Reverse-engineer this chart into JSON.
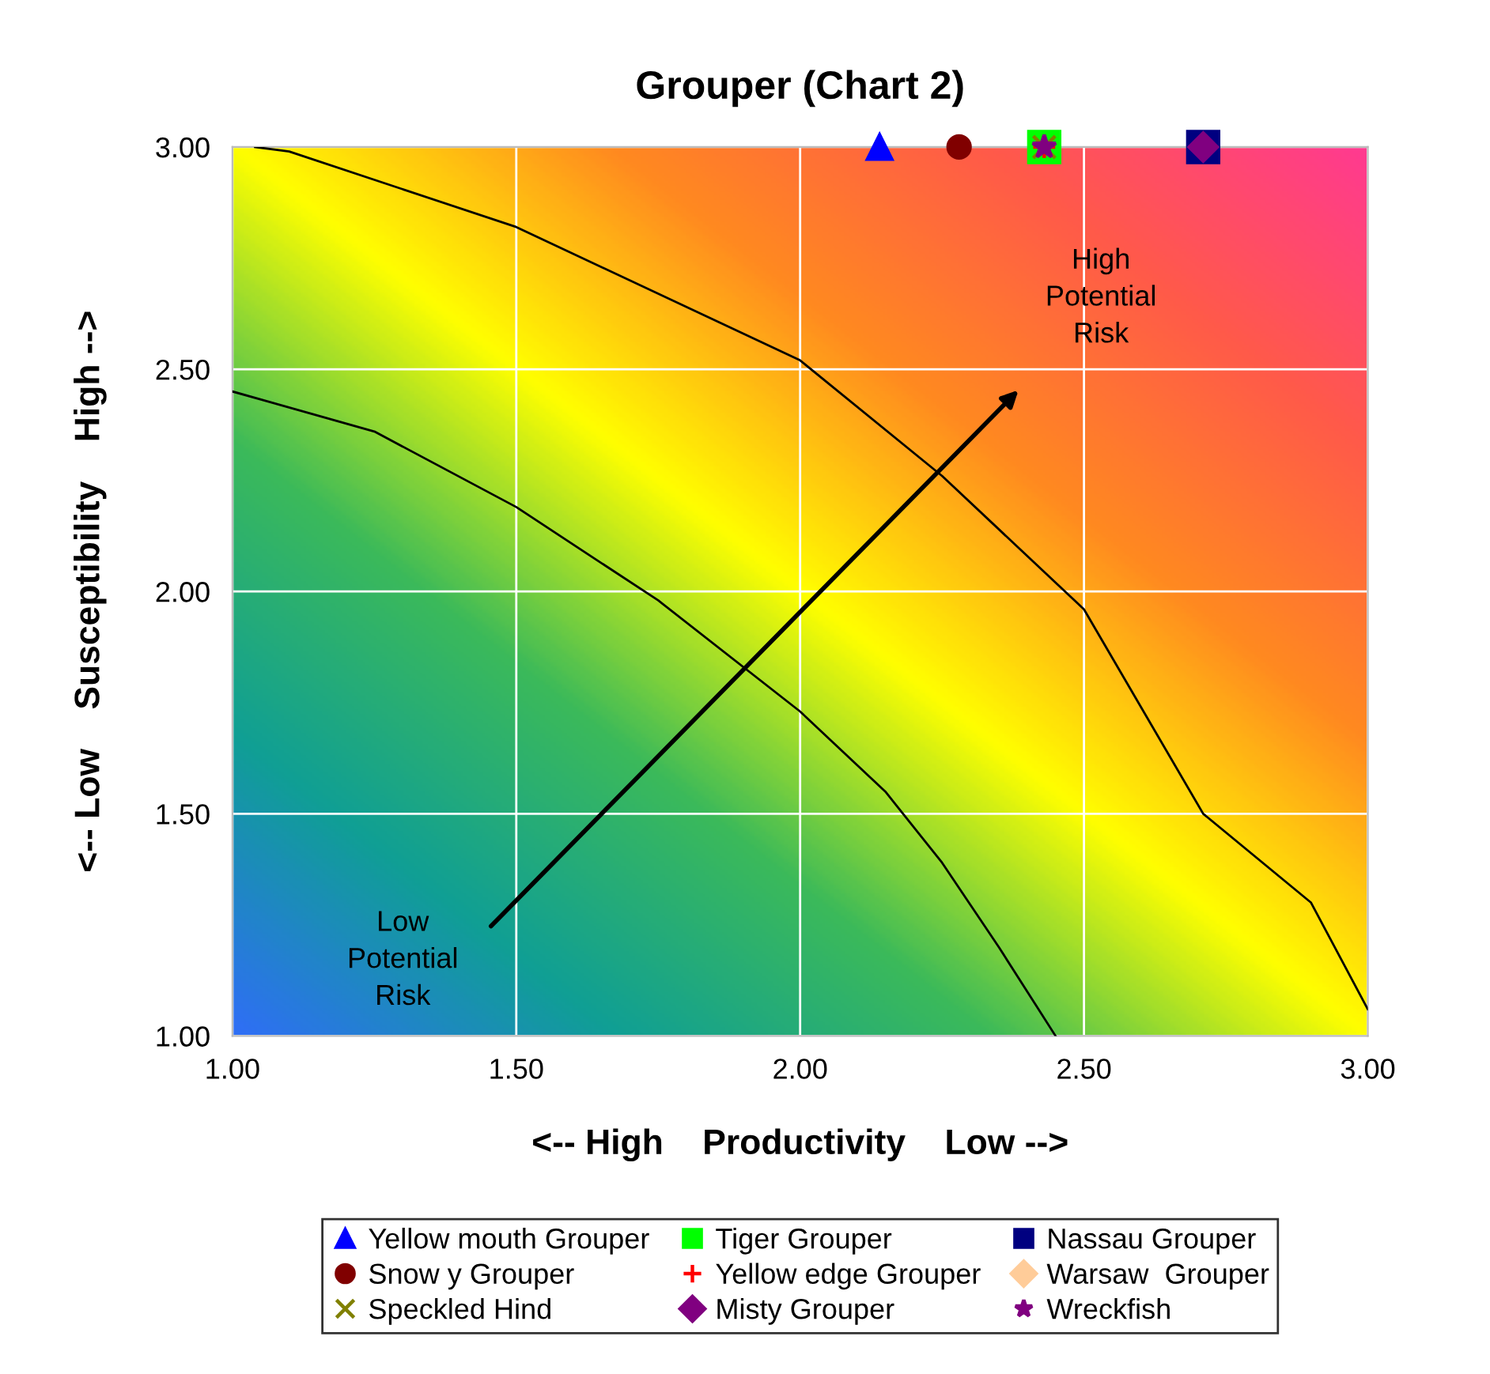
{
  "chart_data": {
    "type": "scatter",
    "title": "Grouper (Chart 2)",
    "xlabel": "<-- High    Productivity    Low -->",
    "ylabel": "<-- Low    Susceptibility    High -->",
    "xlim": [
      1,
      3
    ],
    "ylim": [
      1,
      3
    ],
    "xticks": [
      {
        "value": 1,
        "label": "1.00"
      },
      {
        "value": 1.5,
        "label": "1.50"
      },
      {
        "value": 2,
        "label": "2.00"
      },
      {
        "value": 2.5,
        "label": "2.50"
      },
      {
        "value": 3,
        "label": "3.00"
      }
    ],
    "yticks": [
      {
        "value": 1,
        "label": "1.00"
      },
      {
        "value": 1.5,
        "label": "1.50"
      },
      {
        "value": 2,
        "label": "2.00"
      },
      {
        "value": 2.5,
        "label": "2.50"
      },
      {
        "value": 3,
        "label": "3.00"
      }
    ],
    "grid": true,
    "legend": "bottom",
    "series": [
      {
        "name": "Yellow mouth Grouper",
        "color": "#0000ff",
        "marker": "triangle",
        "x": [
          2.14
        ],
        "values": [
          3.0
        ]
      },
      {
        "name": "Tiger Grouper",
        "color": "#00ff00",
        "marker": "square",
        "x": [
          2.43
        ],
        "values": [
          3.0
        ]
      },
      {
        "name": "Nassau Grouper",
        "color": "#000080",
        "marker": "square",
        "x": [
          2.71
        ],
        "values": [
          3.0
        ]
      },
      {
        "name": "Snow y Grouper",
        "color": "#800000",
        "marker": "circle",
        "x": [
          2.28
        ],
        "values": [
          3.0
        ]
      },
      {
        "name": "Yellow edge Grouper",
        "color": "#ff0000",
        "marker": "cross",
        "x": [
          2.43
        ],
        "values": [
          3.0
        ]
      },
      {
        "name": "Warsaw  Grouper",
        "color": "#ffcc99",
        "marker": "diamond",
        "x": [
          null
        ],
        "values": [
          null
        ]
      },
      {
        "name": "Speckled Hind",
        "color": "#808000",
        "marker": "x",
        "x": [
          2.43
        ],
        "values": [
          3.0
        ]
      },
      {
        "name": "Misty Grouper",
        "color": "#800080",
        "marker": "diamond",
        "x": [
          2.71
        ],
        "values": [
          3.0
        ]
      },
      {
        "name": "Wreckfish",
        "color": "#800080",
        "marker": "star",
        "x": [
          2.43
        ],
        "values": [
          3.0
        ]
      },
      {
        "type": "line",
        "color": "#000000",
        "marker": "none",
        "x": [
          1.0,
          1.25,
          1.5,
          1.75,
          2.0,
          2.15,
          2.25,
          2.35,
          2.45
        ],
        "values": [
          2.45,
          2.36,
          2.19,
          1.98,
          1.73,
          1.55,
          1.39,
          1.2,
          1.0
        ]
      },
      {
        "type": "line",
        "color": "#000000",
        "marker": "none",
        "x": [
          1.04,
          1.1,
          1.5,
          2.0,
          2.25,
          2.5,
          2.71,
          2.9,
          3.0
        ],
        "values": [
          3.0,
          2.99,
          2.82,
          2.52,
          2.26,
          1.96,
          1.5,
          1.3,
          1.06
        ]
      }
    ],
    "annotations": [
      "High\nPotential\nRisk",
      "Low\nPotential\nRisk"
    ]
  }
}
